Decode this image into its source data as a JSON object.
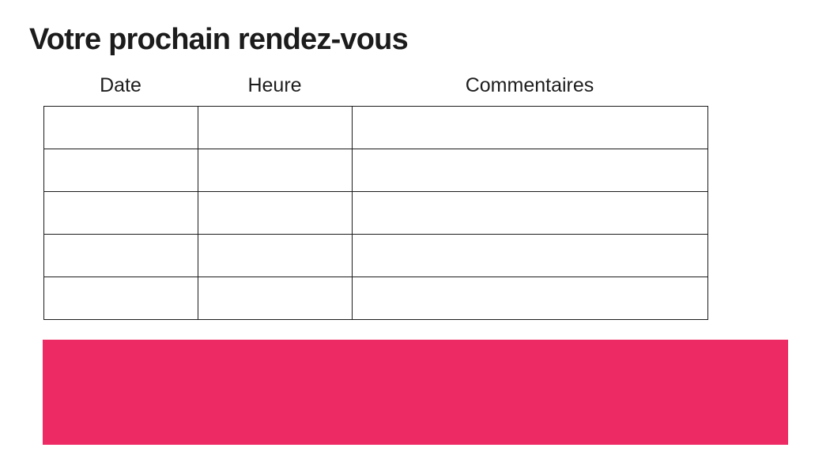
{
  "page": {
    "title": "Votre prochain rendez-vous"
  },
  "table": {
    "columns": [
      {
        "id": "date",
        "label": "Date"
      },
      {
        "id": "heure",
        "label": "Heure"
      },
      {
        "id": "commentaires",
        "label": "Commentaires"
      }
    ],
    "rows": [
      {
        "date": "",
        "heure": "",
        "commentaires": ""
      },
      {
        "date": "",
        "heure": "",
        "commentaires": ""
      },
      {
        "date": "",
        "heure": "",
        "commentaires": ""
      },
      {
        "date": "",
        "heure": "",
        "commentaires": ""
      },
      {
        "date": "",
        "heure": "",
        "commentaires": ""
      }
    ]
  },
  "colors": {
    "accent_pink": "#ED2A63",
    "text": "#1C1C1C",
    "table_border": "#1C1C1C"
  }
}
